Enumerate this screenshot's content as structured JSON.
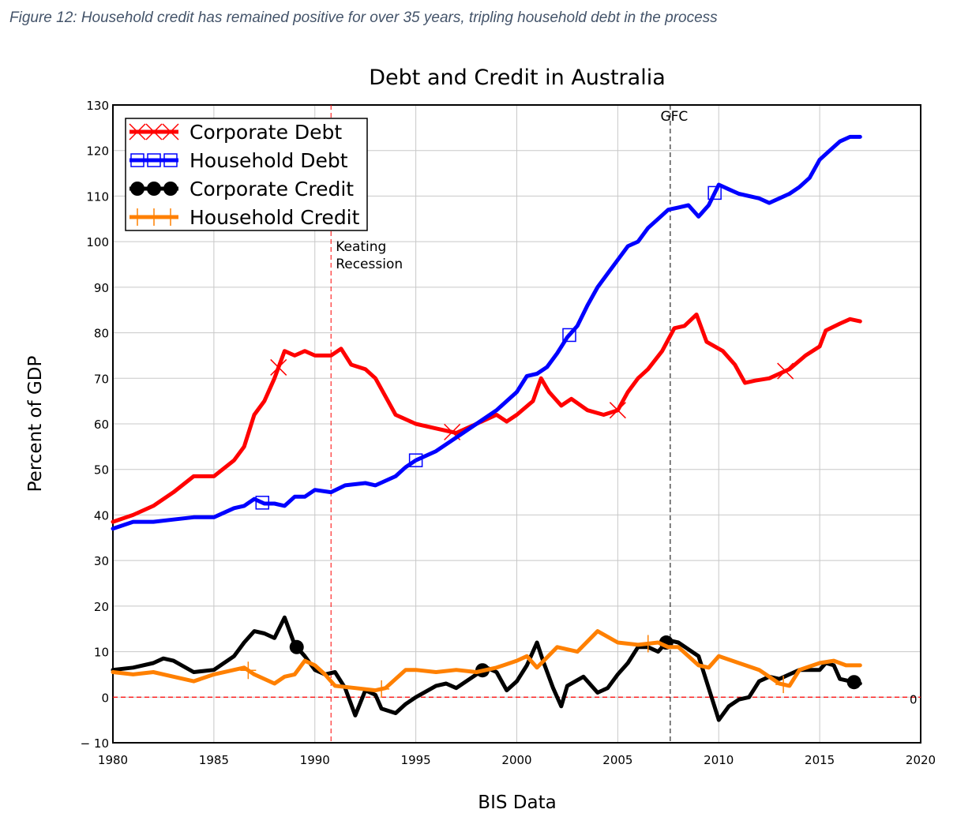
{
  "figure_caption": "Figure 12: Household credit has remained positive for over 35 years, tripling household debt in the process",
  "chart_data": {
    "type": "line",
    "title": "Debt and Credit in Australia",
    "xlabel": "BIS Data",
    "ylabel": "Percent of GDP",
    "xlim": [
      1980,
      2020
    ],
    "ylim": [
      -10,
      130
    ],
    "xticks": [
      1980,
      1985,
      1990,
      1995,
      2000,
      2005,
      2010,
      2015,
      2020
    ],
    "yticks": [
      -10,
      0,
      10,
      20,
      30,
      40,
      50,
      60,
      70,
      80,
      90,
      100,
      110,
      120,
      130
    ],
    "grid": true,
    "legend_position": "top-left",
    "annotations": [
      {
        "label": "Keating",
        "label2": "Recession",
        "x": 1990.8,
        "color": "#ff0000"
      },
      {
        "label": "GFC",
        "x": 2007.6,
        "color": "#000000"
      }
    ],
    "zero_line": {
      "y": 0,
      "label": "0",
      "color": "#ff0000"
    },
    "series": [
      {
        "name": "Corporate Debt",
        "color": "#ff0000",
        "marker": "x",
        "marker_x": [
          1988.2,
          1996.8,
          2005.0,
          2013.3
        ],
        "x": [
          1980,
          1981,
          1982,
          1983,
          1984,
          1985,
          1986,
          1986.5,
          1987,
          1987.5,
          1988,
          1988.5,
          1989,
          1989.5,
          1990,
          1990.8,
          1991.3,
          1991.8,
          1992.5,
          1993,
          1993.5,
          1994,
          1995,
          1996,
          1997,
          1998,
          1999,
          1999.5,
          2000,
          2000.8,
          2001.2,
          2001.6,
          2002.2,
          2002.7,
          2003.5,
          2004.3,
          2005,
          2005.5,
          2006,
          2006.5,
          2007.2,
          2007.8,
          2008.3,
          2008.9,
          2009.4,
          2010.2,
          2010.8,
          2011.3,
          2011.8,
          2012.5,
          2013.5,
          2014.3,
          2015,
          2015.3,
          2016,
          2016.5,
          2017
        ],
        "y": [
          38.5,
          40,
          42,
          45,
          48.5,
          48.5,
          52,
          55,
          62,
          65,
          70,
          76,
          75,
          76,
          75,
          75,
          76.5,
          73,
          72,
          70,
          66,
          62,
          60,
          59,
          58,
          60,
          62,
          60.5,
          62,
          65,
          70,
          67,
          64,
          65.5,
          63,
          62,
          63,
          67,
          70,
          72,
          76,
          81,
          81.5,
          84,
          78,
          76,
          73,
          69,
          69.5,
          70,
          72,
          75,
          77,
          80.5,
          82,
          83,
          82.5
        ]
      },
      {
        "name": "Household Debt",
        "color": "#0000ff",
        "marker": "square",
        "marker_x": [
          1987.4,
          1995.0,
          2002.6,
          2009.8
        ],
        "x": [
          1980,
          1981,
          1982,
          1983,
          1984,
          1985,
          1986,
          1986.5,
          1987,
          1987.5,
          1988,
          1988.5,
          1989,
          1989.5,
          1990,
          1990.8,
          1991.5,
          1992.5,
          1993,
          1994,
          1994.5,
          1995,
          1996,
          1997,
          1998,
          1999,
          2000,
          2000.5,
          2001,
          2001.5,
          2002,
          2002.5,
          2003,
          2003.5,
          2004,
          2004.5,
          2005,
          2005.5,
          2006,
          2006.5,
          2007,
          2007.5,
          2008,
          2008.5,
          2009,
          2009.5,
          2010,
          2010.5,
          2011,
          2012,
          2012.5,
          2013,
          2013.5,
          2014,
          2014.5,
          2015,
          2015.5,
          2016,
          2016.5,
          2017
        ],
        "y": [
          37,
          38.5,
          38.5,
          39,
          39.5,
          39.5,
          41.5,
          42,
          43.5,
          42.5,
          42.5,
          42,
          44,
          44,
          45.5,
          45,
          46.5,
          47,
          46.5,
          48.5,
          50.5,
          52,
          54,
          57,
          60,
          63,
          67,
          70.5,
          71,
          72.5,
          75.5,
          79,
          81.5,
          86,
          90,
          93,
          96,
          99,
          100,
          103,
          105,
          107,
          107.5,
          108,
          105.5,
          108,
          112.5,
          111.5,
          110.5,
          109.5,
          108.5,
          109.5,
          110.5,
          112,
          114,
          118,
          120,
          122,
          123,
          123
        ]
      },
      {
        "name": "Corporate Credit",
        "color": "#000000",
        "marker": "circle",
        "marker_x": [
          1989.1,
          1998.3,
          2007.4,
          2016.7
        ],
        "x": [
          1980,
          1981,
          1982,
          1982.5,
          1983,
          1984,
          1985,
          1986,
          1986.5,
          1987,
          1987.5,
          1988,
          1988.5,
          1989,
          1989.5,
          1990,
          1990.5,
          1991,
          1991.5,
          1992,
          1992.5,
          1993,
          1993.3,
          1994,
          1994.5,
          1995,
          1996,
          1996.5,
          1997,
          1998,
          1998.5,
          1999,
          1999.5,
          2000,
          2000.5,
          2001,
          2001.3,
          2001.8,
          2002.2,
          2002.5,
          2003.3,
          2004,
          2004.5,
          2005,
          2005.5,
          2006,
          2006.5,
          2007,
          2007.5,
          2008,
          2009,
          2009.5,
          2010,
          2010.5,
          2011,
          2011.5,
          2012,
          2012.5,
          2013,
          2013.5,
          2014,
          2015,
          2015.3,
          2015.7,
          2016,
          2016.5,
          2017
        ],
        "y": [
          6,
          6.5,
          7.5,
          8.5,
          8,
          5.5,
          6,
          9,
          12,
          14.5,
          14,
          13,
          17.5,
          11.5,
          9,
          6,
          5,
          5.5,
          2,
          -4,
          1.5,
          0.5,
          -2.5,
          -3.5,
          -1.5,
          0,
          2.5,
          3,
          2,
          5,
          6.5,
          5.5,
          1.5,
          3.5,
          7,
          12,
          8,
          2,
          -2,
          2.5,
          4.5,
          1,
          2,
          5,
          7.5,
          11,
          11,
          10,
          12.5,
          12,
          9,
          2,
          -5,
          -2,
          -0.5,
          0,
          3.5,
          4.5,
          4,
          5,
          6,
          6,
          7.5,
          7,
          4,
          3.5,
          3
        ]
      },
      {
        "name": "Household Credit",
        "color": "#ff8000",
        "marker": "plus",
        "marker_x": [
          1986.7,
          1993.3,
          2006.5,
          2013.2
        ],
        "x": [
          1980,
          1981,
          1982,
          1983,
          1984,
          1985,
          1986,
          1986.5,
          1987,
          1988,
          1988.5,
          1989,
          1989.5,
          1990,
          1990.5,
          1991,
          1992,
          1993,
          1993.5,
          1994,
          1994.5,
          1995,
          1996,
          1997,
          1998,
          1999,
          2000,
          2000.5,
          2001,
          2002,
          2003,
          2004,
          2005,
          2006,
          2007,
          2007.5,
          2008,
          2009,
          2009.5,
          2010,
          2011,
          2012,
          2013,
          2013.5,
          2014,
          2015,
          2015.7,
          2016.3,
          2017
        ],
        "y": [
          5.5,
          5,
          5.5,
          4.5,
          3.5,
          5,
          6,
          6.5,
          5,
          3,
          4.5,
          5,
          8,
          7,
          5,
          2.5,
          2,
          1.5,
          2,
          4,
          6,
          6,
          5.5,
          6,
          5.5,
          6.5,
          8,
          9,
          6.5,
          11,
          10,
          14.5,
          12,
          11.5,
          12,
          11,
          11,
          7,
          6.5,
          9,
          7.5,
          6,
          3,
          2.5,
          6,
          7.5,
          8,
          7,
          7
        ]
      }
    ]
  }
}
